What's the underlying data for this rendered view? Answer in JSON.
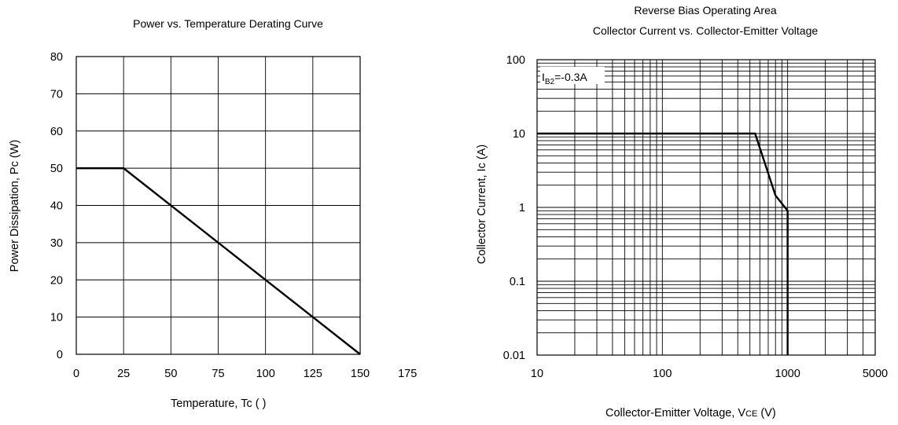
{
  "chart_data": [
    {
      "type": "line",
      "title": "Power vs. Temperature Derating Curve",
      "xlabel": "Temperature, Tc (   )",
      "ylabel": "Power Dissipation, Pc (W)",
      "xlim": [
        0,
        175
      ],
      "ylim": [
        0,
        80
      ],
      "xticks": [
        "0",
        "25",
        "50",
        "75",
        "100",
        "125",
        "150",
        "175"
      ],
      "yticks": [
        "0",
        "10",
        "20",
        "30",
        "40",
        "50",
        "60",
        "70",
        "80"
      ],
      "grid": true,
      "series": [
        {
          "x": [
            0,
            25,
            150
          ],
          "y": [
            50,
            50,
            0
          ]
        }
      ]
    },
    {
      "type": "line",
      "title": "Reverse Bias Operating Area",
      "subtitle": "Collector Current vs. Collector-Emitter Voltage",
      "xlabel": "Collector-Emitter Voltage, VCE (V)",
      "ylabel": "Collector Current, Ic (A)",
      "xscale": "log",
      "yscale": "log",
      "xlim": [
        10,
        5000
      ],
      "ylim": [
        0.01,
        100
      ],
      "xticks": [
        "10",
        "100",
        "1000",
        "5000"
      ],
      "yticks": [
        "0.01",
        "0.1",
        "1",
        "10",
        "100"
      ],
      "grid": true,
      "annotation": "IB2=-0.3A",
      "series": [
        {
          "x": [
            10,
            550,
            800,
            1000,
            1000
          ],
          "y": [
            10,
            10,
            1.45,
            0.9,
            0.01
          ]
        }
      ]
    }
  ]
}
